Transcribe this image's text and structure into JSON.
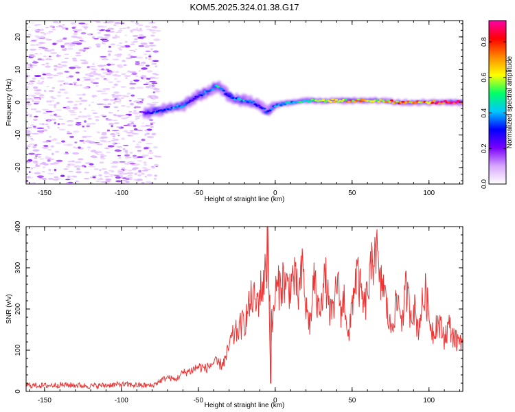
{
  "title": "KOM5.2025.324.01.38.G17",
  "chart_data": [
    {
      "type": "heatmap",
      "title": "KOM5.2025.324.01.38.G17",
      "xlabel": "Height of straight line (km)",
      "ylabel": "Frequency (Hz)",
      "xlim": [
        -162,
        122
      ],
      "ylim": [
        -25,
        25
      ],
      "x_ticks": [
        -150,
        -100,
        -50,
        0,
        50,
        100
      ],
      "y_ticks": [
        -20,
        -10,
        0,
        10,
        20
      ],
      "colorbar": {
        "label": "Normalized spectral amplitude",
        "range": [
          0,
          0.92
        ],
        "ticks": [
          0.0,
          0.2,
          0.4,
          0.6,
          0.8
        ],
        "colors": [
          "#ffffff",
          "#d7a6ff",
          "#7a00ff",
          "#0000ff",
          "#00c8ff",
          "#00ff66",
          "#ffff00",
          "#ff8800",
          "#ff0000",
          "#ff00aa"
        ]
      },
      "ridge": {
        "x": [
          -85,
          -80,
          -75,
          -70,
          -65,
          -60,
          -55,
          -50,
          -45,
          -40,
          -37,
          -35,
          -30,
          -25,
          -20,
          -15,
          -10,
          -5,
          0,
          10,
          20,
          30,
          40,
          50,
          60,
          70,
          80,
          90,
          100,
          110,
          122
        ],
        "y": [
          -3.5,
          -3,
          -2.5,
          -2,
          -1.5,
          -1,
          0.5,
          2,
          3,
          4.5,
          5,
          4,
          2,
          1,
          0.5,
          0,
          -1,
          -3,
          -1,
          0,
          0.5,
          0.5,
          0.5,
          0.5,
          0.5,
          0.5,
          0,
          0,
          0,
          0,
          0
        ],
        "amplitude": [
          0.2,
          0.3,
          0.4,
          0.35,
          0.4,
          0.35,
          0.3,
          0.3,
          0.45,
          0.4,
          0.5,
          0.4,
          0.3,
          0.4,
          0.45,
          0.35,
          0.3,
          0.35,
          0.4,
          0.45,
          0.5,
          0.55,
          0.6,
          0.7,
          0.65,
          0.7,
          0.75,
          0.7,
          0.75,
          0.8,
          0.85
        ]
      },
      "noise_region_x": [
        -162,
        -82
      ]
    },
    {
      "type": "line",
      "xlabel": "Height of straight line (km)",
      "ylabel": "SNR (v/v)",
      "xlim": [
        -162,
        122
      ],
      "ylim": [
        0,
        400
      ],
      "x_ticks": [
        -150,
        -100,
        -50,
        0,
        50,
        100
      ],
      "y_ticks": [
        0,
        100,
        200,
        300,
        400
      ],
      "color": "#ee3333",
      "series": [
        {
          "name": "SNR",
          "x": [
            -162,
            -150,
            -140,
            -130,
            -120,
            -110,
            -100,
            -90,
            -80,
            -75,
            -70,
            -65,
            -60,
            -55,
            -50,
            -45,
            -40,
            -35,
            -32,
            -30,
            -28,
            -25,
            -22,
            -20,
            -18,
            -15,
            -12,
            -10,
            -8,
            -6,
            -5,
            -4,
            -3,
            -2,
            0,
            2,
            5,
            8,
            10,
            12,
            15,
            18,
            20,
            23,
            25,
            28,
            30,
            33,
            35,
            38,
            40,
            43,
            45,
            48,
            50,
            53,
            55,
            58,
            60,
            62,
            64,
            65,
            66,
            68,
            70,
            73,
            75,
            78,
            80,
            83,
            85,
            88,
            90,
            93,
            95,
            98,
            100,
            103,
            105,
            108,
            110,
            113,
            115,
            118,
            120,
            122
          ],
          "values": [
            15,
            14,
            16,
            15,
            13,
            15,
            17,
            15,
            14,
            25,
            35,
            28,
            45,
            50,
            60,
            55,
            70,
            65,
            80,
            110,
            130,
            145,
            160,
            170,
            190,
            230,
            210,
            240,
            260,
            290,
            400,
            260,
            180,
            150,
            240,
            250,
            270,
            250,
            260,
            280,
            230,
            300,
            200,
            160,
            280,
            190,
            240,
            270,
            200,
            180,
            280,
            190,
            230,
            120,
            220,
            290,
            250,
            200,
            240,
            280,
            330,
            375,
            340,
            250,
            270,
            190,
            150,
            200,
            220,
            170,
            250,
            190,
            210,
            150,
            200,
            240,
            180,
            140,
            170,
            150,
            130,
            160,
            140,
            120,
            130,
            125
          ]
        }
      ]
    }
  ]
}
